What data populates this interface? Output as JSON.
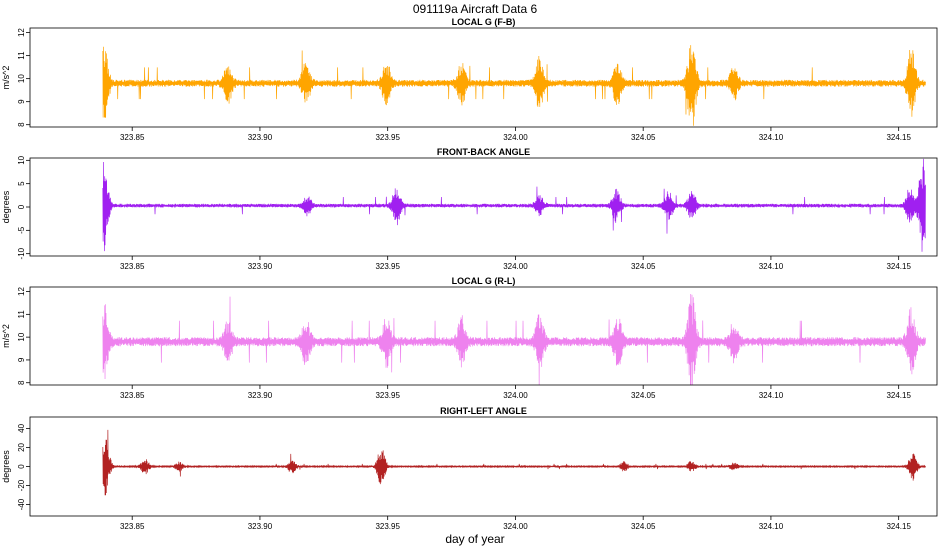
{
  "figure": {
    "title": "091119a   Aircraft Data 6",
    "xlabel": "day of year"
  },
  "chart_data": [
    {
      "type": "line",
      "title": "LOCAL G (F-B)",
      "ylabel": "m/s^2",
      "color": "#FFA500",
      "xlim": [
        323.81,
        324.165
      ],
      "ylim": [
        7.9,
        12.2
      ],
      "x_ticks": [
        "323.85",
        "323.90",
        "323.95",
        "324.00",
        "324.05",
        "324.10",
        "324.15"
      ],
      "y_ticks": [
        "8",
        "9",
        "10",
        "11",
        "12"
      ],
      "baseline": 9.8,
      "x_range": [
        323.8385,
        324.1605
      ],
      "noise_amplitude": 0.15,
      "bursts": [
        {
          "x": 323.839,
          "amplitude": 1.7
        },
        {
          "x": 323.8875,
          "amplitude": 0.8
        },
        {
          "x": 323.918,
          "amplitude": 0.9
        },
        {
          "x": 323.9495,
          "amplitude": 0.9
        },
        {
          "x": 323.979,
          "amplitude": 0.9
        },
        {
          "x": 324.0095,
          "amplitude": 1.1
        },
        {
          "x": 324.04,
          "amplitude": 1.0
        },
        {
          "x": 324.069,
          "amplitude": 2.0
        },
        {
          "x": 324.0855,
          "amplitude": 0.7
        },
        {
          "x": 324.155,
          "amplitude": 1.5
        }
      ]
    },
    {
      "type": "line",
      "title": "FRONT-BACK ANGLE",
      "ylabel": "degrees",
      "color": "#A020F0",
      "xlim": [
        323.81,
        324.165
      ],
      "ylim": [
        -10.5,
        10.5
      ],
      "x_ticks": [
        "323.85",
        "323.90",
        "323.95",
        "324.00",
        "324.05",
        "324.10",
        "324.15"
      ],
      "y_ticks": [
        "-10",
        "-5",
        "0",
        "5",
        "10"
      ],
      "baseline": 0.3,
      "x_range": [
        323.8385,
        324.1605
      ],
      "noise_amplitude": 0.4,
      "bursts": [
        {
          "x": 323.839,
          "amplitude": 9.5
        },
        {
          "x": 323.9185,
          "amplitude": 2.0
        },
        {
          "x": 323.9535,
          "amplitude": 4.0
        },
        {
          "x": 324.0095,
          "amplitude": 2.0
        },
        {
          "x": 324.0395,
          "amplitude": 3.5
        },
        {
          "x": 324.06,
          "amplitude": 3.0
        },
        {
          "x": 324.069,
          "amplitude": 3.0
        },
        {
          "x": 324.1545,
          "amplitude": 4.0
        },
        {
          "x": 324.1595,
          "amplitude": 10.0
        }
      ]
    },
    {
      "type": "line",
      "title": "LOCAL G (R-L)",
      "ylabel": "m/s^2",
      "color": "#EE82EE",
      "xlim": [
        323.81,
        324.165
      ],
      "ylim": [
        7.9,
        12.2
      ],
      "x_ticks": [
        "323.85",
        "323.90",
        "323.95",
        "324.00",
        "324.05",
        "324.10",
        "324.15"
      ],
      "y_ticks": [
        "8",
        "9",
        "10",
        "11",
        "12"
      ],
      "baseline": 9.8,
      "x_range": [
        323.8385,
        324.1605
      ],
      "noise_amplitude": 0.2,
      "bursts": [
        {
          "x": 323.839,
          "amplitude": 1.6
        },
        {
          "x": 323.8875,
          "amplitude": 0.8
        },
        {
          "x": 323.918,
          "amplitude": 1.0
        },
        {
          "x": 323.9495,
          "amplitude": 1.0
        },
        {
          "x": 323.979,
          "amplitude": 1.0
        },
        {
          "x": 324.0095,
          "amplitude": 1.2
        },
        {
          "x": 324.04,
          "amplitude": 1.1
        },
        {
          "x": 324.069,
          "amplitude": 2.0
        },
        {
          "x": 324.0855,
          "amplitude": 0.8
        },
        {
          "x": 324.155,
          "amplitude": 1.5
        }
      ]
    },
    {
      "type": "line",
      "title": "RIGHT-LEFT ANGLE",
      "ylabel": "degrees",
      "color": "#B22222",
      "xlim": [
        323.81,
        324.165
      ],
      "ylim": [
        -52,
        52
      ],
      "x_ticks": [
        "323.85",
        "323.90",
        "323.95",
        "324.00",
        "324.05",
        "324.10",
        "324.15"
      ],
      "y_ticks": [
        "-40",
        "-20",
        "0",
        "20",
        "40"
      ],
      "baseline": 0,
      "x_range": [
        323.8385,
        324.1605
      ],
      "noise_amplitude": 0.6,
      "bursts": [
        {
          "x": 323.8395,
          "amplitude": 30
        },
        {
          "x": 323.855,
          "amplitude": 8
        },
        {
          "x": 323.8685,
          "amplitude": 5
        },
        {
          "x": 323.9125,
          "amplitude": 7
        },
        {
          "x": 323.9475,
          "amplitude": 20
        },
        {
          "x": 324.0425,
          "amplitude": 5
        },
        {
          "x": 324.069,
          "amplitude": 6
        },
        {
          "x": 324.0855,
          "amplitude": 4
        },
        {
          "x": 324.1555,
          "amplitude": 15
        }
      ]
    }
  ]
}
